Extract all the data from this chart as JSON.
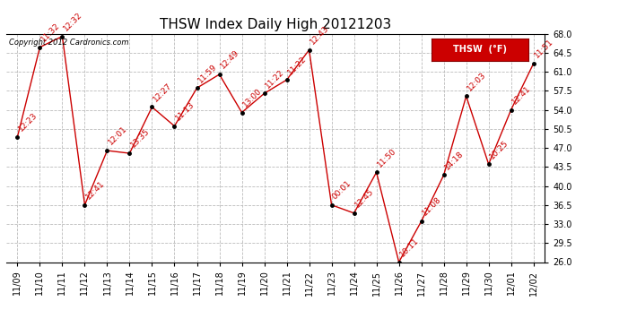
{
  "title": "THSW Index Daily High 20121203",
  "copyright": "Copyright 2012 Cardronics.com",
  "legend_label": "THSW  (°F)",
  "ylim": [
    26.0,
    68.0
  ],
  "yticks": [
    26.0,
    29.5,
    33.0,
    36.5,
    40.0,
    43.5,
    47.0,
    50.5,
    54.0,
    57.5,
    61.0,
    64.5,
    68.0
  ],
  "dates": [
    "11/09",
    "11/10",
    "11/11",
    "11/12",
    "11/13",
    "11/14",
    "11/15",
    "11/16",
    "11/17",
    "11/18",
    "11/19",
    "11/20",
    "11/21",
    "11/22",
    "11/23",
    "11/24",
    "11/25",
    "11/26",
    "11/27",
    "11/28",
    "11/29",
    "11/30",
    "12/01",
    "12/02"
  ],
  "values": [
    49.0,
    65.5,
    67.5,
    36.5,
    46.5,
    46.0,
    54.5,
    51.0,
    58.0,
    60.5,
    53.5,
    57.0,
    59.5,
    65.0,
    36.5,
    35.0,
    42.5,
    26.0,
    33.5,
    42.0,
    56.5,
    44.0,
    54.0,
    62.5
  ],
  "time_labels": [
    "12:23",
    "11:32",
    "12:32",
    "12:41",
    "12:01",
    "13:35",
    "12:27",
    "11:13",
    "11:59",
    "12:49",
    "13:00",
    "11:22",
    "11:22",
    "12:43",
    "00:01",
    "12:45",
    "11:50",
    "10:11",
    "11:08",
    "14:18",
    "12:03",
    "10:25",
    "12:41",
    "11:51"
  ],
  "line_color": "#cc0000",
  "marker_color": "#000000",
  "bg_color": "#ffffff",
  "grid_color": "#bbbbbb",
  "title_fontsize": 11,
  "tick_fontsize": 7,
  "label_fontsize": 6.5,
  "copyright_fontsize": 6,
  "legend_fontsize": 7
}
